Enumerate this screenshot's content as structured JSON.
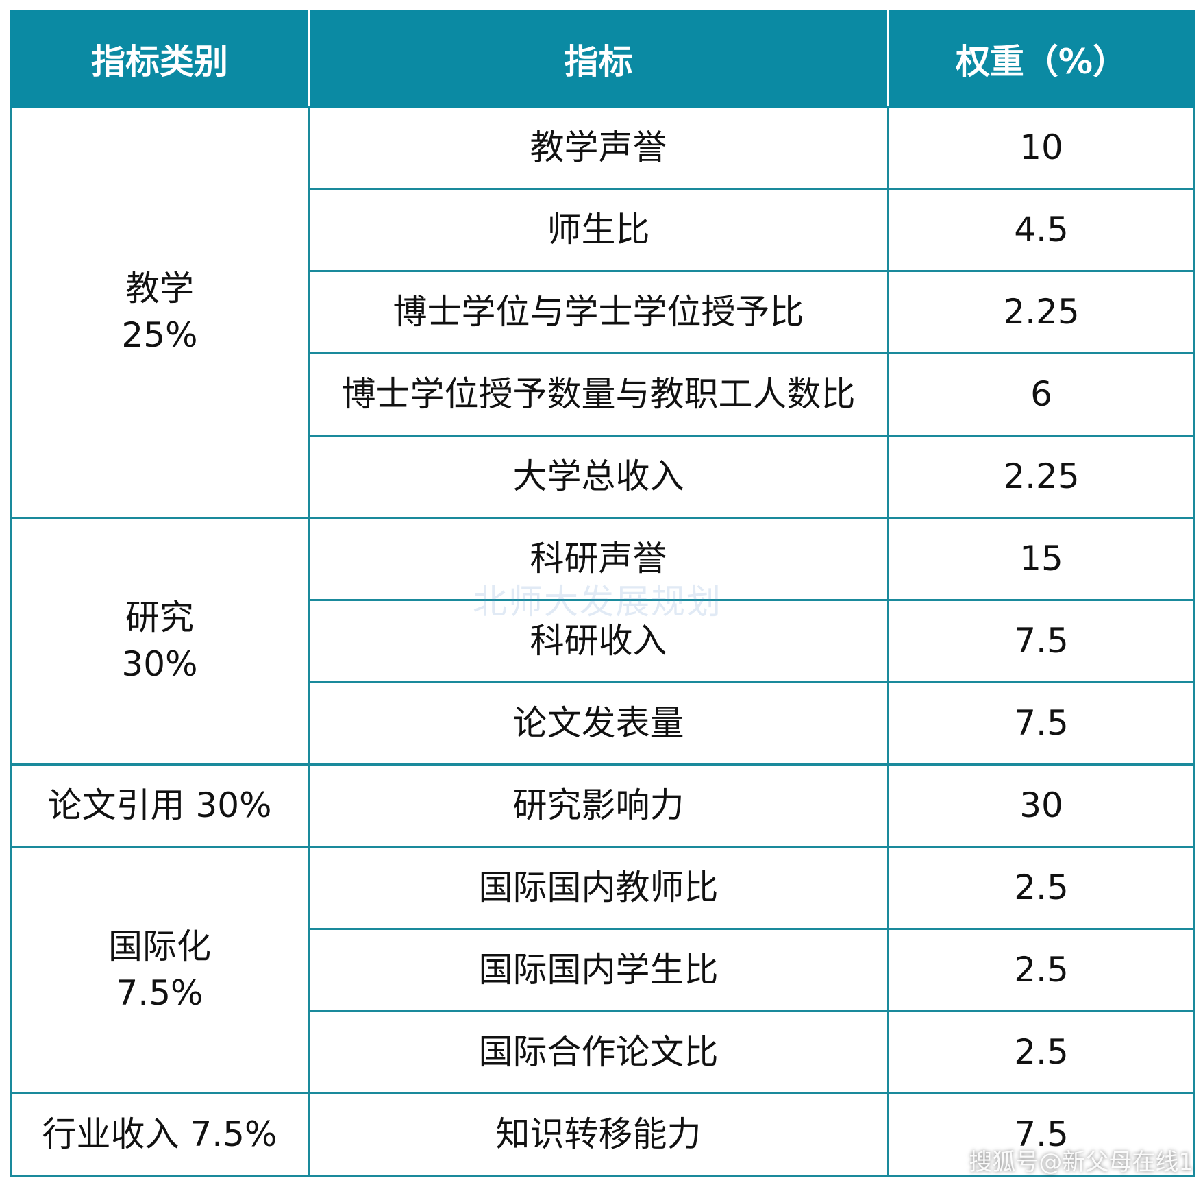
{
  "header": {
    "category": "指标类别",
    "indicator": "指标",
    "weight": "权重（%）"
  },
  "rows": [
    {
      "category": [
        "教学",
        "25%"
      ],
      "rowspan": 5,
      "indicator": "教学声誉",
      "weight": "10"
    },
    {
      "indicator": "师生比",
      "weight": "4.5"
    },
    {
      "indicator": "博士学位与学士学位授予比",
      "weight": "2.25"
    },
    {
      "indicator": "博士学位授予数量与教职工人数比",
      "weight": "6"
    },
    {
      "indicator": "大学总收入",
      "weight": "2.25"
    },
    {
      "category": [
        "研究",
        "30%"
      ],
      "rowspan": 3,
      "indicator": "科研声誉",
      "weight": "15"
    },
    {
      "indicator": "科研收入",
      "weight": "7.5"
    },
    {
      "indicator": "论文发表量",
      "weight": "7.5"
    },
    {
      "category": [
        "论文引用 30%"
      ],
      "rowspan": 1,
      "indicator": "研究影响力",
      "weight": "30"
    },
    {
      "category": [
        "国际化",
        "7.5%"
      ],
      "rowspan": 3,
      "indicator": "国际国内教师比",
      "weight": "2.5"
    },
    {
      "indicator": "国际国内学生比",
      "weight": "2.5"
    },
    {
      "indicator": "国际合作论文比",
      "weight": "2.5"
    },
    {
      "category": [
        "行业收入 7.5%"
      ],
      "rowspan": 1,
      "indicator": "知识转移能力",
      "weight": "7.5"
    }
  ],
  "watermark": "北师大发展规划",
  "source_watermark": "搜狐号@新父母在线1",
  "colors": {
    "header_bg": "#0b8aa3",
    "border": "#1a8a9c"
  }
}
